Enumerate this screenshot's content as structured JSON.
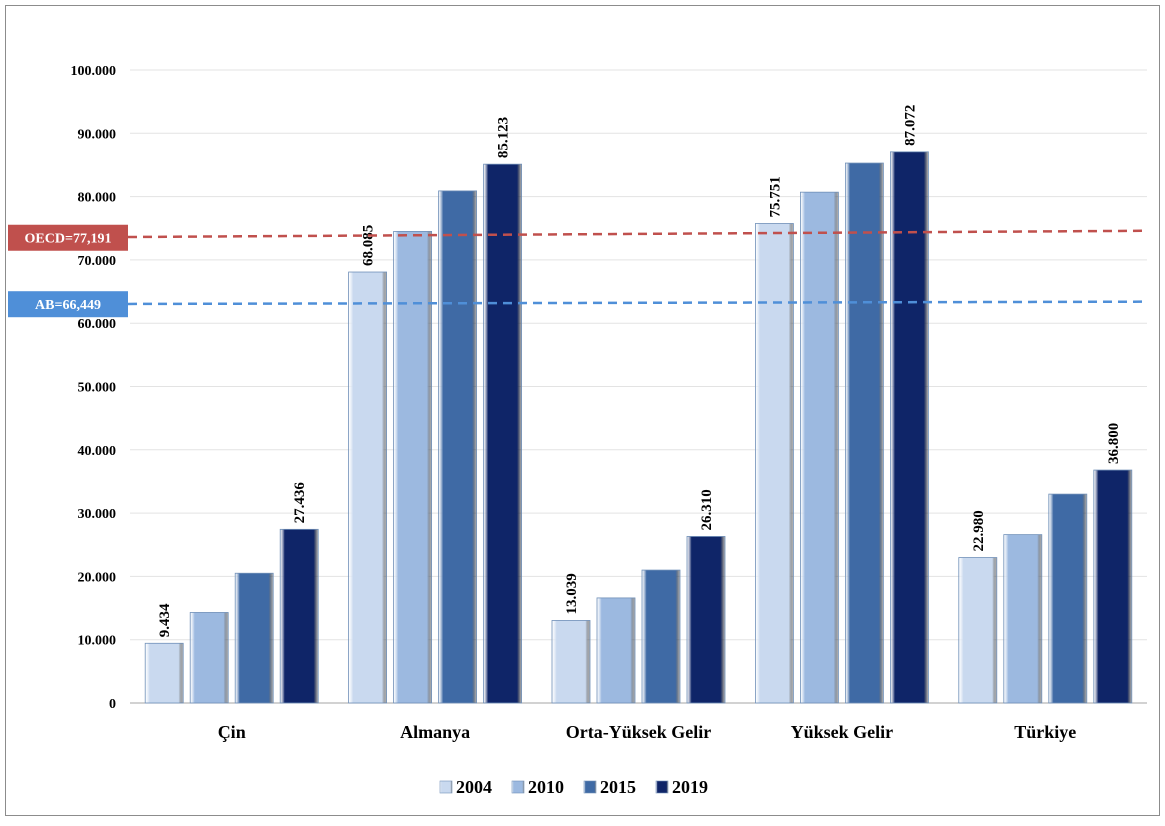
{
  "chart_data": {
    "type": "bar",
    "categories": [
      "Çin",
      "Almanya",
      "Orta-Yüksek Gelir",
      "Yüksek Gelir",
      "Türkiye"
    ],
    "series": [
      {
        "name": "2004",
        "color": "#c9d9ef",
        "values": [
          9434,
          68085,
          13039,
          75751,
          22980
        ]
      },
      {
        "name": "2010",
        "color": "#9cb9e0",
        "values": [
          14300,
          74500,
          16600,
          80700,
          26600
        ]
      },
      {
        "name": "2015",
        "color": "#3f6aa5",
        "values": [
          20500,
          80900,
          21000,
          85300,
          33000
        ]
      },
      {
        "name": "2019",
        "color": "#0f2568",
        "values": [
          27436,
          85123,
          26310,
          87072,
          36800
        ]
      }
    ],
    "data_labels": [
      {
        "series": 0,
        "category": 0,
        "text": "9.434"
      },
      {
        "series": 3,
        "category": 0,
        "text": "27.436"
      },
      {
        "series": 0,
        "category": 1,
        "text": "68.085"
      },
      {
        "series": 3,
        "category": 1,
        "text": "85.123"
      },
      {
        "series": 0,
        "category": 2,
        "text": "13.039"
      },
      {
        "series": 3,
        "category": 2,
        "text": "26.310"
      },
      {
        "series": 0,
        "category": 3,
        "text": "75.751"
      },
      {
        "series": 3,
        "category": 3,
        "text": "87.072"
      },
      {
        "series": 0,
        "category": 4,
        "text": "22.980"
      },
      {
        "series": 3,
        "category": 4,
        "text": "36.800"
      }
    ],
    "ylim": [
      0,
      100000
    ],
    "yticks": [
      0,
      10000,
      20000,
      30000,
      40000,
      50000,
      60000,
      70000,
      80000,
      90000,
      100000
    ],
    "ytick_labels": [
      "0",
      "10.000",
      "20.000",
      "30.000",
      "40.000",
      "50.000",
      "60.000",
      "70.000",
      "80.000",
      "90.000",
      "100.000"
    ],
    "reference_lines": [
      {
        "label": "OECD=77,191",
        "y_start": 73500,
        "y_end": 74600,
        "color": "#c0504d"
      },
      {
        "label": "AB=66,449",
        "y_start": 63000,
        "y_end": 63400,
        "color": "#4f8fd8"
      }
    ],
    "grid": true,
    "legend_position": "bottom"
  }
}
